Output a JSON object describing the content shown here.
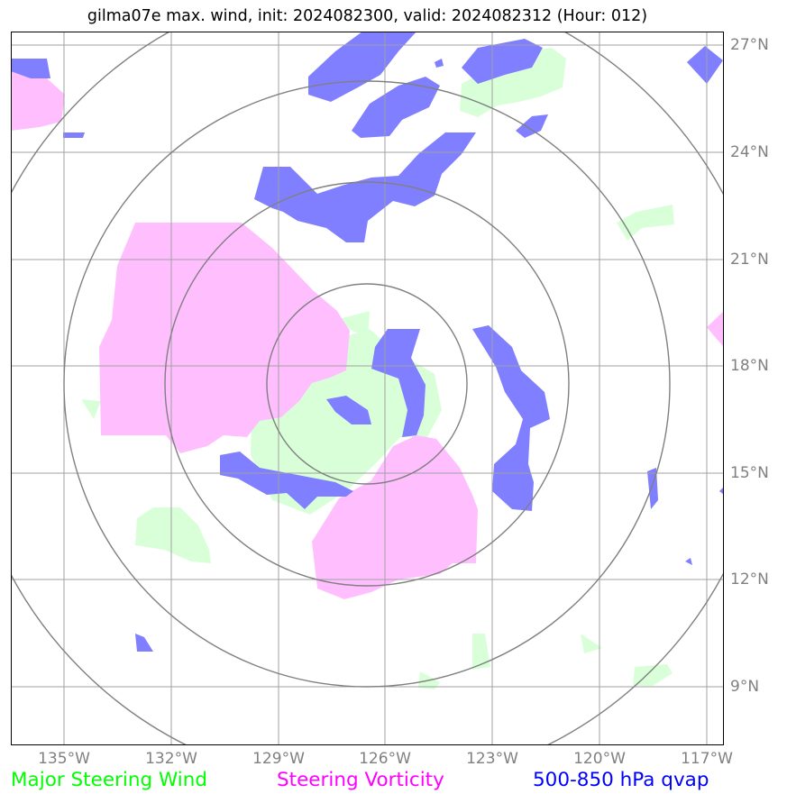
{
  "title": "gilma07e max. wind, init: 2024082300, valid: 2024082312 (Hour: 012)",
  "axes": {
    "lon_ticks": [
      "135°W",
      "132°W",
      "129°W",
      "126°W",
      "123°W",
      "120°W",
      "117°W"
    ],
    "lat_ticks": [
      "27°N",
      "24°N",
      "21°N",
      "18°N",
      "15°N",
      "12°N",
      "9°N"
    ]
  },
  "map_extent": {
    "lon_min": -136.5,
    "lon_max": -116.5,
    "lat_min": 7.5,
    "lat_max": 27.5
  },
  "grid": true,
  "range_rings_center": {
    "lon": -126.5,
    "lat": 17.5
  },
  "legend": [
    {
      "label": "Major Steering Wind",
      "color": "#00ff00"
    },
    {
      "label": "Steering Vorticity",
      "color": "#ff00ff"
    },
    {
      "label": "500-850 hPa qvap",
      "color": "#0000ff"
    }
  ],
  "colors": {
    "wind_fill": "#d9ffd9",
    "vorticity_fill": "#ffbfff",
    "qvap_fill": "#7f7fff",
    "grid": "#a0a0a0",
    "rings": "#808080"
  }
}
